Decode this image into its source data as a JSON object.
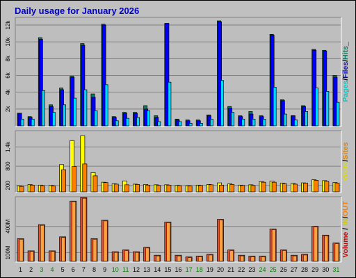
{
  "title": "Daily usage for January 2026",
  "days": [
    "1",
    "2",
    "3",
    "4",
    "5",
    "6",
    "7",
    "8",
    "9",
    "10",
    "11",
    "12",
    "13",
    "14",
    "15",
    "16",
    "17",
    "18",
    "19",
    "20",
    "21",
    "22",
    "23",
    "24",
    "25",
    "26",
    "27",
    "28",
    "29",
    "30",
    "31"
  ],
  "weekend_days": [
    "3",
    "4",
    "10",
    "11",
    "17",
    "18",
    "24",
    "25",
    "31"
  ],
  "colors": {
    "background": "#C0C0C0",
    "panel": "#BEBEBE",
    "title": "#0000CC",
    "hits": "#00805C",
    "files": "#0000FF",
    "pages": "#00D8FF",
    "visits": "#FFFF00",
    "sites": "#FF8000",
    "volume": "#E05030",
    "volume_in": "#FFA040",
    "weekday_label": "#000000",
    "weekend_label": "#008000"
  },
  "panels": [
    {
      "id": "hits-files-pages",
      "ticks": [
        "2k",
        "4k",
        "6k",
        "8k",
        "10k",
        "12k"
      ],
      "right_label": [
        "Pages",
        "/",
        "Files",
        "/",
        "Hits",
        "_"
      ],
      "right_label_colors": [
        "#00C8C8",
        "#000000",
        "#0000CC",
        "#000000",
        "#008060",
        "#000000"
      ]
    },
    {
      "id": "visits-sites",
      "ticks": [
        "200",
        "800",
        "1,4k"
      ],
      "right_label": [
        "Visits",
        "/",
        "Sites"
      ],
      "right_label_colors": [
        "#DDDD00",
        "#000000",
        "#E08000"
      ]
    },
    {
      "id": "volume",
      "ticks": [
        "100M",
        "400M"
      ],
      "right_label": [
        "Volume",
        " / ",
        "IN",
        "/",
        "OUT"
      ],
      "right_label_colors": [
        "#CC0000",
        "#000000",
        "#CCCC00",
        "#000000",
        "#FF8000"
      ]
    }
  ],
  "chart_data": [
    {
      "type": "bar",
      "categories": [
        "1",
        "2",
        "3",
        "4",
        "5",
        "6",
        "7",
        "8",
        "9",
        "10",
        "11",
        "12",
        "13",
        "14",
        "15",
        "16",
        "17",
        "18",
        "19",
        "20",
        "21",
        "22",
        "23",
        "24",
        "25",
        "26",
        "27",
        "28",
        "29",
        "30",
        "31"
      ],
      "ylim": [
        0,
        12500
      ],
      "series": [
        {
          "name": "Hits",
          "values": [
            1500,
            1100,
            10500,
            2500,
            4500,
            5900,
            9800,
            3800,
            12100,
            1100,
            1600,
            1600,
            2400,
            1200,
            12200,
            800,
            700,
            700,
            1300,
            12500,
            2300,
            1200,
            1700,
            1200,
            10900,
            3100,
            1200,
            2400,
            9100,
            9000,
            6000
          ]
        },
        {
          "name": "Files",
          "values": [
            1500,
            1000,
            10300,
            2300,
            4300,
            5800,
            9600,
            3400,
            12000,
            1000,
            1500,
            1500,
            2000,
            1000,
            12200,
            700,
            600,
            600,
            1200,
            12400,
            2100,
            1100,
            1400,
            1100,
            10800,
            3000,
            1200,
            2300,
            9000,
            8900,
            5800
          ]
        },
        {
          "name": "Pages",
          "values": [
            800,
            800,
            4200,
            1600,
            2500,
            3300,
            4300,
            1800,
            4900,
            600,
            900,
            1000,
            1800,
            500,
            5200,
            500,
            300,
            300,
            800,
            5400,
            1600,
            800,
            800,
            800,
            4600,
            1400,
            700,
            1700,
            4500,
            4100,
            2800
          ]
        }
      ]
    },
    {
      "type": "bar",
      "categories": [
        "1",
        "2",
        "3",
        "4",
        "5",
        "6",
        "7",
        "8",
        "9",
        "10",
        "11",
        "12",
        "13",
        "14",
        "15",
        "16",
        "17",
        "18",
        "19",
        "20",
        "21",
        "22",
        "23",
        "24",
        "25",
        "26",
        "27",
        "28",
        "29",
        "30",
        "31"
      ],
      "ylim": [
        0,
        1800
      ],
      "series": [
        {
          "name": "Visits",
          "values": [
            180,
            230,
            210,
            200,
            850,
            1600,
            1750,
            600,
            300,
            250,
            340,
            240,
            230,
            220,
            220,
            200,
            190,
            210,
            230,
            280,
            250,
            210,
            220,
            320,
            330,
            270,
            260,
            280,
            380,
            350,
            290
          ]
        },
        {
          "name": "Sites",
          "values": [
            170,
            210,
            190,
            180,
            690,
            790,
            870,
            500,
            290,
            240,
            220,
            230,
            210,
            200,
            210,
            190,
            180,
            200,
            220,
            210,
            230,
            200,
            200,
            300,
            300,
            250,
            240,
            270,
            360,
            330,
            270
          ]
        }
      ]
    },
    {
      "type": "bar",
      "categories": [
        "1",
        "2",
        "3",
        "4",
        "5",
        "6",
        "7",
        "8",
        "9",
        "10",
        "11",
        "12",
        "13",
        "14",
        "15",
        "16",
        "17",
        "18",
        "19",
        "20",
        "21",
        "22",
        "23",
        "24",
        "25",
        "26",
        "27",
        "28",
        "29",
        "30",
        "31"
      ],
      "ylim": [
        0,
        700
      ],
      "series": [
        {
          "name": "Volume",
          "values": [
            260,
            120,
            420,
            120,
            280,
            690,
            730,
            260,
            470,
            110,
            130,
            110,
            160,
            70,
            450,
            70,
            50,
            60,
            80,
            480,
            130,
            70,
            60,
            60,
            370,
            130,
            70,
            80,
            400,
            300,
            210
          ]
        }
      ]
    }
  ]
}
